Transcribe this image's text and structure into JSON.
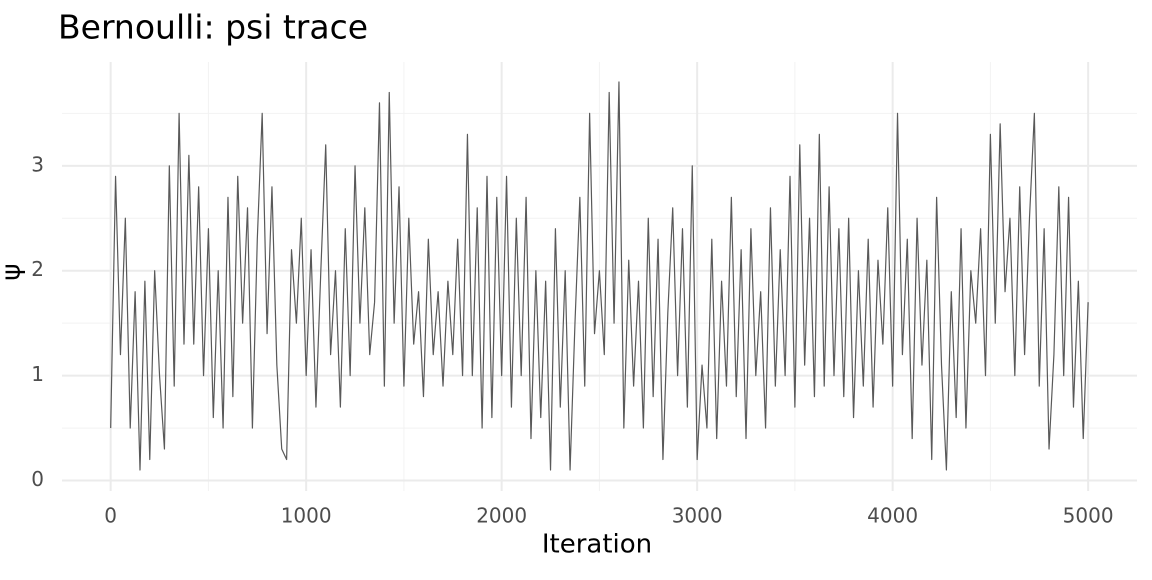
{
  "chart_data": {
    "type": "line",
    "title": "Bernoulli: psi trace",
    "x_label": "Iteration",
    "y_label": "ψ",
    "x": [
      0,
      25,
      50,
      75,
      100,
      125,
      150,
      175,
      200,
      225,
      250,
      275,
      300,
      325,
      350,
      375,
      400,
      425,
      450,
      475,
      500,
      525,
      550,
      575,
      600,
      625,
      650,
      675,
      700,
      725,
      750,
      775,
      800,
      825,
      850,
      875,
      900,
      925,
      950,
      975,
      1000,
      1025,
      1050,
      1075,
      1100,
      1125,
      1150,
      1175,
      1200,
      1225,
      1250,
      1275,
      1300,
      1325,
      1350,
      1375,
      1400,
      1425,
      1450,
      1475,
      1500,
      1525,
      1550,
      1575,
      1600,
      1625,
      1650,
      1675,
      1700,
      1725,
      1750,
      1775,
      1800,
      1825,
      1850,
      1875,
      1900,
      1925,
      1950,
      1975,
      2000,
      2025,
      2050,
      2075,
      2100,
      2125,
      2150,
      2175,
      2200,
      2225,
      2250,
      2275,
      2300,
      2325,
      2350,
      2375,
      2400,
      2425,
      2450,
      2475,
      2500,
      2525,
      2550,
      2575,
      2600,
      2625,
      2650,
      2675,
      2700,
      2725,
      2750,
      2775,
      2800,
      2825,
      2850,
      2875,
      2900,
      2925,
      2950,
      2975,
      3000,
      3025,
      3050,
      3075,
      3100,
      3125,
      3150,
      3175,
      3200,
      3225,
      3250,
      3275,
      3300,
      3325,
      3350,
      3375,
      3400,
      3425,
      3450,
      3475,
      3500,
      3525,
      3550,
      3575,
      3600,
      3625,
      3650,
      3675,
      3700,
      3725,
      3750,
      3775,
      3800,
      3825,
      3850,
      3875,
      3900,
      3925,
      3950,
      3975,
      4000,
      4025,
      4050,
      4075,
      4100,
      4125,
      4150,
      4175,
      4200,
      4225,
      4250,
      4275,
      4300,
      4325,
      4350,
      4375,
      4400,
      4425,
      4450,
      4475,
      4500,
      4525,
      4550,
      4575,
      4600,
      4625,
      4650,
      4675,
      4700,
      4725,
      4750,
      4775,
      4800,
      4825,
      4850,
      4875,
      4900,
      4925,
      4950,
      4975,
      5000
    ],
    "series": [
      {
        "color": "#595959",
        "values": [
          0.5,
          2.9,
          1.2,
          2.5,
          0.5,
          1.8,
          0.1,
          1.9,
          0.2,
          2.0,
          1.0,
          0.3,
          3.0,
          0.9,
          3.5,
          1.3,
          3.1,
          1.3,
          2.8,
          1.0,
          2.4,
          0.6,
          2.0,
          0.5,
          2.7,
          0.8,
          2.9,
          1.5,
          2.6,
          0.5,
          2.3,
          3.5,
          1.4,
          2.8,
          1.1,
          0.3,
          0.2,
          2.2,
          1.5,
          2.5,
          1.0,
          2.2,
          0.7,
          2.0,
          3.2,
          1.2,
          2.0,
          0.7,
          2.4,
          1.0,
          3.0,
          1.5,
          2.6,
          1.2,
          1.7,
          3.6,
          0.9,
          3.7,
          1.5,
          2.8,
          0.9,
          2.5,
          1.3,
          1.8,
          0.8,
          2.3,
          1.2,
          1.8,
          0.9,
          1.9,
          1.2,
          2.3,
          1.0,
          3.3,
          1.0,
          2.6,
          0.5,
          2.9,
          0.6,
          2.7,
          1.0,
          2.9,
          0.7,
          2.5,
          1.0,
          2.7,
          0.4,
          2.0,
          0.6,
          1.9,
          0.1,
          2.4,
          0.7,
          2.0,
          0.1,
          1.5,
          2.7,
          0.9,
          3.5,
          1.4,
          2.0,
          1.2,
          3.7,
          1.5,
          3.8,
          0.5,
          2.1,
          0.9,
          1.9,
          0.5,
          2.5,
          0.8,
          2.3,
          0.2,
          1.6,
          2.6,
          1.0,
          2.4,
          0.7,
          3.0,
          0.2,
          1.1,
          0.5,
          2.3,
          0.4,
          1.9,
          0.9,
          2.7,
          0.8,
          2.2,
          0.4,
          2.4,
          1.0,
          1.8,
          0.5,
          2.6,
          0.9,
          2.2,
          1.0,
          2.9,
          0.7,
          3.2,
          1.1,
          2.5,
          0.8,
          3.3,
          0.9,
          2.8,
          1.0,
          2.4,
          0.8,
          2.5,
          0.6,
          2.0,
          0.9,
          2.3,
          0.7,
          2.1,
          1.3,
          2.6,
          0.9,
          3.5,
          1.2,
          2.3,
          0.4,
          2.5,
          1.1,
          2.1,
          0.2,
          2.7,
          1.1,
          0.1,
          1.8,
          0.6,
          2.4,
          0.5,
          2.0,
          1.5,
          2.4,
          1.0,
          3.3,
          1.5,
          3.4,
          1.8,
          2.5,
          1.0,
          2.8,
          1.2,
          2.5,
          3.5,
          0.9,
          2.4,
          0.3,
          1.2,
          2.8,
          1.0,
          2.7,
          0.7,
          1.9,
          0.4,
          1.7
        ]
      }
    ],
    "xlim": [
      -249,
      5250
    ],
    "ylim": [
      -0.1,
      3.99
    ],
    "xticks": [
      0,
      1000,
      2000,
      3000,
      4000,
      5000
    ],
    "yticks": [
      0,
      1,
      2,
      3
    ],
    "grid": true
  }
}
